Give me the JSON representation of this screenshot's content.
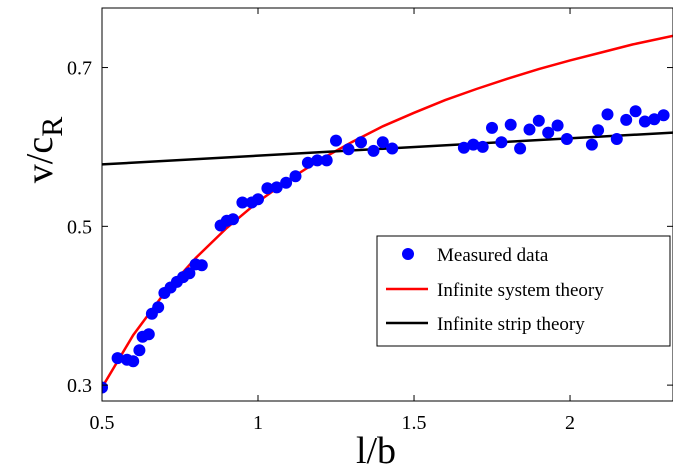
{
  "chart_data": {
    "type": "scatter",
    "xlabel": "l/b",
    "ylabel_main": "v/c",
    "ylabel_sub": "R",
    "xlim": [
      0.5,
      2.33
    ],
    "ylim": [
      0.28,
      0.775
    ],
    "xticks": [
      0.5,
      1,
      1.5,
      2
    ],
    "xtick_labels": [
      "0.5",
      "1",
      "1.5",
      "2"
    ],
    "yticks": [
      0.3,
      0.5,
      0.7
    ],
    "ytick_labels": [
      "0.3",
      "0.5",
      "0.7"
    ],
    "grid": false,
    "legend_position": "lower-right",
    "series": [
      {
        "name": "Measured data",
        "kind": "markers",
        "color": "#0000ff",
        "x": [
          0.5,
          0.55,
          0.58,
          0.6,
          0.62,
          0.63,
          0.65,
          0.66,
          0.68,
          0.7,
          0.72,
          0.74,
          0.76,
          0.78,
          0.8,
          0.82,
          0.88,
          0.9,
          0.92,
          0.95,
          0.98,
          1.0,
          1.03,
          1.06,
          1.09,
          1.12,
          1.16,
          1.19,
          1.22,
          1.25,
          1.29,
          1.33,
          1.37,
          1.4,
          1.43,
          1.66,
          1.69,
          1.72,
          1.75,
          1.78,
          1.81,
          1.84,
          1.87,
          1.9,
          1.93,
          1.96,
          1.99,
          2.07,
          2.09,
          2.12,
          2.15,
          2.18,
          2.21,
          2.24,
          2.27,
          2.3
        ],
        "y": [
          0.297,
          0.334,
          0.332,
          0.33,
          0.344,
          0.361,
          0.364,
          0.39,
          0.398,
          0.416,
          0.423,
          0.43,
          0.436,
          0.441,
          0.452,
          0.451,
          0.501,
          0.507,
          0.509,
          0.53,
          0.53,
          0.534,
          0.548,
          0.549,
          0.555,
          0.563,
          0.58,
          0.583,
          0.583,
          0.608,
          0.597,
          0.606,
          0.595,
          0.606,
          0.598,
          0.599,
          0.603,
          0.6,
          0.624,
          0.606,
          0.628,
          0.598,
          0.622,
          0.633,
          0.618,
          0.627,
          0.61,
          0.603,
          0.621,
          0.641,
          0.61,
          0.634,
          0.645,
          0.632,
          0.635,
          0.64
        ]
      },
      {
        "name": "Infinite system theory",
        "kind": "line",
        "color": "#ff0000",
        "x": [
          0.5,
          0.6,
          0.7,
          0.8,
          0.9,
          1.0,
          1.1,
          1.2,
          1.3,
          1.4,
          1.5,
          1.6,
          1.7,
          1.8,
          1.9,
          2.0,
          2.1,
          2.2,
          2.33
        ],
        "y": [
          0.297,
          0.363,
          0.416,
          0.46,
          0.498,
          0.531,
          0.559,
          0.584,
          0.606,
          0.626,
          0.643,
          0.659,
          0.673,
          0.686,
          0.698,
          0.709,
          0.719,
          0.729,
          0.74
        ]
      },
      {
        "name": "Infinite strip theory",
        "kind": "line",
        "color": "#000000",
        "x": [
          0.5,
          2.33
        ],
        "y": [
          0.578,
          0.618
        ]
      }
    ]
  }
}
